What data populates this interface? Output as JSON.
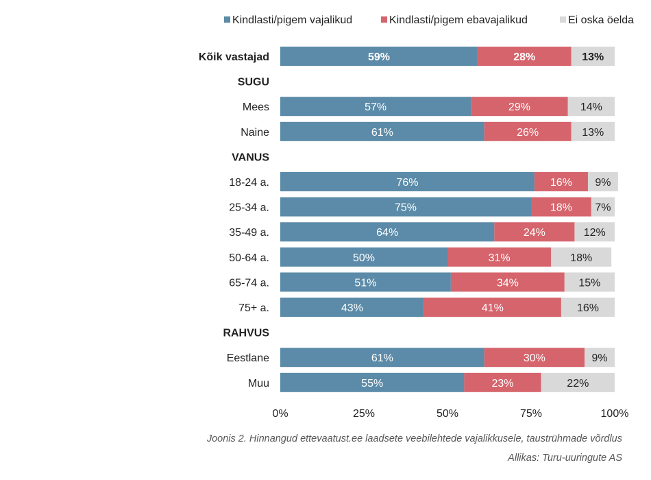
{
  "chart_data": {
    "type": "bar",
    "orientation": "horizontal",
    "stacked": true,
    "percent_scale": true,
    "xlim": [
      0,
      100
    ],
    "x_ticks": [
      "0%",
      "25%",
      "50%",
      "75%",
      "100%"
    ],
    "colors": [
      "#5b8ba8",
      "#d6646c",
      "#d9d9d9"
    ],
    "legend_position": "top-right",
    "series": [
      {
        "name": "Kindlasti/pigem vajalikud"
      },
      {
        "name": "Kindlasti/pigem ebavajalikud"
      },
      {
        "name": "Ei oska öelda"
      }
    ],
    "rows": [
      {
        "label": "Kõik vastajad",
        "bold": true,
        "values": [
          59,
          28,
          13
        ]
      },
      {
        "label": "SUGU",
        "header": true
      },
      {
        "label": "Mees",
        "values": [
          57,
          29,
          14
        ]
      },
      {
        "label": "Naine",
        "values": [
          61,
          26,
          13
        ]
      },
      {
        "label": "VANUS",
        "header": true
      },
      {
        "label": "18-24 a.",
        "values": [
          76,
          16,
          9
        ]
      },
      {
        "label": "25-34 a.",
        "values": [
          75,
          18,
          7
        ]
      },
      {
        "label": "35-49 a.",
        "values": [
          64,
          24,
          12
        ]
      },
      {
        "label": "50-64 a.",
        "values": [
          50,
          31,
          18
        ]
      },
      {
        "label": "65-74 a.",
        "values": [
          51,
          34,
          15
        ]
      },
      {
        "label": "75+ a.",
        "values": [
          43,
          41,
          16
        ]
      },
      {
        "label": "RAHVUS",
        "header": true
      },
      {
        "label": "Eestlane",
        "values": [
          61,
          30,
          9
        ]
      },
      {
        "label": "Muu",
        "values": [
          55,
          23,
          22
        ]
      }
    ]
  },
  "caption": "Joonis 2. Hinnangud ettevaatust.ee laadsete veebilehtede vajalikkusele, taustrühmade võrdlus",
  "source": "Allikas: Turu-uuringute AS"
}
